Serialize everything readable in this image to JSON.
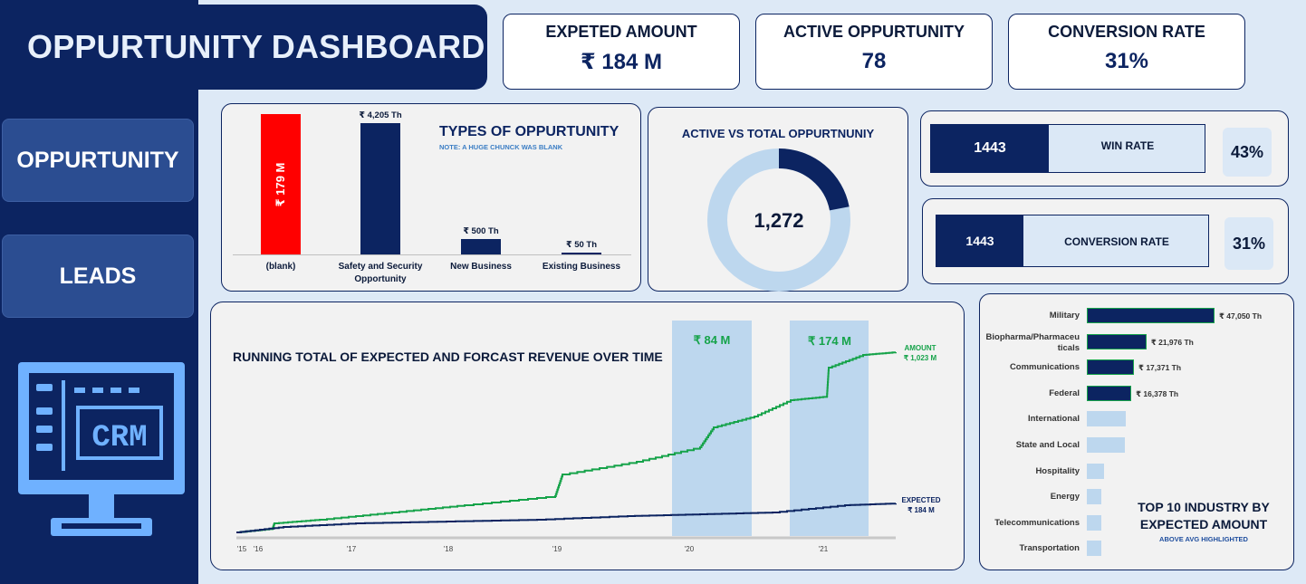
{
  "header": {
    "title": "OPPURTUNITY DASHBOARD"
  },
  "nav": {
    "items": [
      {
        "label": "OPPURTUNITY"
      },
      {
        "label": "LEADS"
      }
    ]
  },
  "illustration": {
    "screen_text": "CRM"
  },
  "kpis": [
    {
      "label": "EXPETED AMOUNT",
      "value": "₹ 184 M"
    },
    {
      "label": "ACTIVE OPPURTUNITY",
      "value": "78"
    },
    {
      "label": "CONVERSION RATE",
      "value": "31%"
    }
  ],
  "types_chart": {
    "title": "TYPES OF OPPURTUNITY",
    "note": "NOTE: A HUGE CHUNCK WAS BLANK",
    "categories": [
      "(blank)",
      "Safety and Security Opportunity",
      "New Business",
      "Existing Business"
    ],
    "bar_labels": [
      "₹ 179 M",
      "₹ 4,205 Th",
      "₹ 500 Th",
      "₹ 50 Th"
    ],
    "bar_heights_display": [
      155,
      145,
      17,
      2
    ],
    "colors": [
      "#ff0000",
      "#0c2461",
      "#0c2461",
      "#0c2461"
    ]
  },
  "donut": {
    "title": "ACTIVE VS TOTAL OPPURTNUNIY",
    "center_value": "1,272",
    "active_fraction": 0.22,
    "colors": {
      "active": "#0c2461",
      "rest": "#bdd7ee"
    }
  },
  "rate_cards": [
    {
      "count": "1443",
      "label": "WIN RATE",
      "value": "43%"
    },
    {
      "count": "1443",
      "label": "CONVERSION RATE",
      "value": "31%"
    }
  ],
  "running_total": {
    "title": "RUNNING TOTAL OF EXPECTED AND FORCAST REVENUE OVER TIME",
    "highlights": [
      "₹ 84 M",
      "₹ 174 M"
    ],
    "amount_label": {
      "name": "AMOUNT",
      "value": "₹ 1,023 M"
    },
    "expected_label": {
      "name": "EXPECTED",
      "value": "₹ 184 M"
    },
    "x_ticks": [
      "'15",
      "'16",
      "'17",
      "'18",
      "'19",
      "'20",
      "'21"
    ],
    "colors": {
      "amount": "#16a34a",
      "expected": "#0c2461",
      "highlight": "#bdd7ee"
    }
  },
  "industry": {
    "title_line1": "TOP 10 INDUSTRY BY",
    "title_line2": "EXPECTED AMOUNT",
    "subtitle": "ABOVE AVG HIGHLIGHTED",
    "items": [
      {
        "name": "Military",
        "value": 47050,
        "label": "₹ 47,050 Th",
        "highlight": true
      },
      {
        "name": "Biopharma/Pharmaceu ticals",
        "value": 21976,
        "label": "₹ 21,976 Th",
        "highlight": true
      },
      {
        "name": "Communications",
        "value": 17371,
        "label": "₹ 17,371 Th",
        "highlight": true
      },
      {
        "name": "Federal",
        "value": 16378,
        "label": "₹ 16,378 Th",
        "highlight": true
      },
      {
        "name": "International",
        "value": 14300,
        "label": "",
        "highlight": false
      },
      {
        "name": "State and Local",
        "value": 14000,
        "label": "",
        "highlight": false
      },
      {
        "name": "Hospitality",
        "value": 6500,
        "label": "",
        "highlight": false
      },
      {
        "name": "Energy",
        "value": 5200,
        "label": "",
        "highlight": false
      },
      {
        "name": "Telecommunications",
        "value": 5200,
        "label": "",
        "highlight": false
      },
      {
        "name": "Transportation",
        "value": 5200,
        "label": "",
        "highlight": false
      }
    ]
  }
}
